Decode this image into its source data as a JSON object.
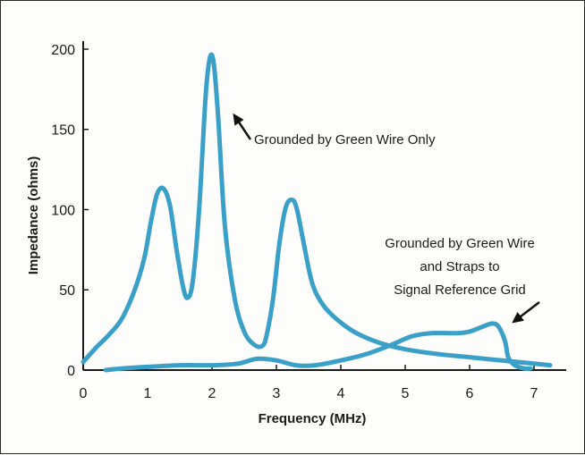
{
  "chart_data": {
    "type": "line",
    "title": "",
    "xlabel": "Frequency (MHz)",
    "ylabel": "Impedance (ohms)",
    "xlim": [
      0,
      7.5
    ],
    "ylim": [
      0,
      205
    ],
    "xticks": [
      "0",
      "1",
      "2",
      "3",
      "4",
      "5",
      "6",
      "7"
    ],
    "yticks": [
      "0",
      "50",
      "100",
      "150",
      "200"
    ],
    "grid": false,
    "legend": "none",
    "line_color": "#3aa0c8",
    "series": [
      {
        "name": "Grounded by Green Wire Only",
        "x": [
          0,
          0.2,
          0.4,
          0.6,
          0.8,
          0.95,
          1.05,
          1.15,
          1.25,
          1.35,
          1.45,
          1.55,
          1.62,
          1.7,
          1.8,
          1.9,
          1.97,
          2.03,
          2.1,
          2.2,
          2.35,
          2.5,
          2.65,
          2.78,
          2.85,
          2.95,
          3.05,
          3.15,
          3.25,
          3.32,
          3.42,
          3.55,
          3.7,
          3.9,
          4.2,
          4.6,
          5.0,
          5.5,
          6.0,
          6.5,
          7.0,
          7.25
        ],
        "y": [
          5,
          14,
          22,
          32,
          50,
          70,
          92,
          110,
          113,
          102,
          75,
          52,
          45,
          55,
          100,
          170,
          195,
          190,
          155,
          90,
          45,
          24,
          16,
          15,
          22,
          45,
          80,
          102,
          106,
          100,
          80,
          55,
          42,
          33,
          24,
          17,
          13,
          10,
          8,
          6,
          4,
          3
        ]
      },
      {
        "name": "Grounded by Green Wire and Straps to Signal Reference Grid",
        "x": [
          0.35,
          0.6,
          1.0,
          1.5,
          2.0,
          2.4,
          2.7,
          3.0,
          3.3,
          3.6,
          4.0,
          4.4,
          4.8,
          5.1,
          5.4,
          5.8,
          6.0,
          6.2,
          6.35,
          6.45,
          6.55,
          6.6,
          6.7,
          6.85,
          6.95
        ],
        "y": [
          0,
          1,
          2,
          3,
          3,
          4,
          7,
          6,
          3,
          3,
          6,
          10,
          16,
          21,
          23,
          23,
          24,
          27,
          29,
          27,
          18,
          8,
          3,
          1,
          1
        ]
      }
    ],
    "annotations": [
      {
        "lines": [
          "Grounded by Green Wire Only"
        ],
        "points_to": {
          "x": 2.27,
          "y": 160
        }
      },
      {
        "lines": [
          "Grounded by Green Wire",
          "and Straps to",
          "Signal Reference Grid"
        ],
        "points_to": {
          "x": 6.6,
          "y": 27
        }
      }
    ]
  }
}
